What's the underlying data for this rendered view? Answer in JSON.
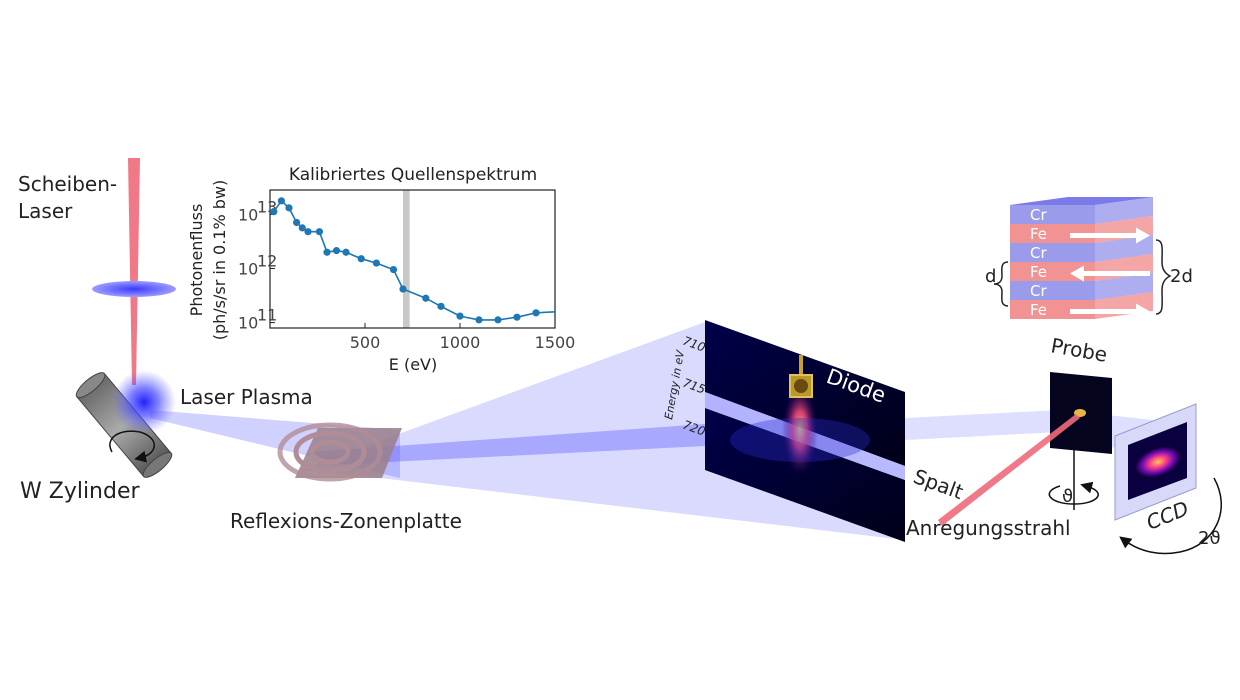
{
  "labels": {
    "disk_laser": [
      "Scheiben-",
      "Laser"
    ],
    "laser_plasma": "Laser Plasma",
    "w_cylinder": "W Zylinder",
    "zone_plate": "Reflexions-Zonenplatte",
    "diode": "Diode",
    "slit": "Spalt",
    "excitation": "Anregungsstrahl",
    "sample": "Probe",
    "ccd": "CCD",
    "theta": "ϑ",
    "two_theta": "2ϑ",
    "d": "d",
    "two_d": "2d",
    "energy_axis": "Energy in eV",
    "energy_ticks": [
      "710",
      "715",
      "720"
    ]
  },
  "multilayer": {
    "layers": [
      "Cr",
      "Fe",
      "Cr",
      "Fe",
      "Cr",
      "Fe"
    ],
    "arrows": [
      "right",
      "left",
      "right"
    ],
    "colors": {
      "cr": "#8a8ae8",
      "fe": "#f08080"
    }
  },
  "chart_data": {
    "type": "scatter",
    "title": "Kalibriertes Quellenspektrum",
    "xlabel": "E (eV)",
    "ylabel": [
      "Photonenfluss",
      "(ph/s/sr in 0.1% bw)"
    ],
    "x_ticks": [
      "500",
      "1000",
      "1500"
    ],
    "y_tick_powers": [
      "13",
      "12",
      "11"
    ],
    "xlim": [
      0,
      1500
    ],
    "ylim_log10": [
      10.9,
      13.45
    ],
    "log_y": true,
    "marker_color": "#1f77b4",
    "highlight_band": [
      700,
      735
    ],
    "points": [
      [
        20,
        13.05
      ],
      [
        60,
        13.25
      ],
      [
        100,
        13.12
      ],
      [
        140,
        12.85
      ],
      [
        170,
        12.75
      ],
      [
        200,
        12.68
      ],
      [
        260,
        12.68
      ],
      [
        300,
        12.3
      ],
      [
        350,
        12.33
      ],
      [
        400,
        12.3
      ],
      [
        480,
        12.18
      ],
      [
        560,
        12.1
      ],
      [
        650,
        11.98
      ],
      [
        700,
        11.62
      ],
      [
        820,
        11.45
      ],
      [
        900,
        11.3
      ],
      [
        1000,
        11.12
      ],
      [
        1100,
        11.05
      ],
      [
        1200,
        11.05
      ],
      [
        1300,
        11.1
      ],
      [
        1400,
        11.18
      ],
      [
        1500,
        11.2
      ]
    ]
  }
}
